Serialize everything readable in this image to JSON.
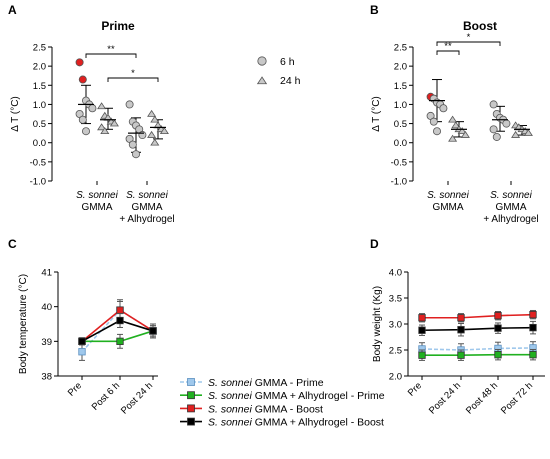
{
  "chart_data": [
    {
      "panel": "A",
      "type": "scatter",
      "title": "Prime",
      "ylabel": "Δ T (°C)",
      "ylim": [
        -1.0,
        2.5
      ],
      "yticks": [
        "-1.0",
        "-0.5",
        "0.0",
        "0.5",
        "1.0",
        "1.5",
        "2.0",
        "2.5"
      ],
      "groups": [
        {
          "line1": "S. sonnei",
          "line2": "GMMA",
          "line3": ""
        },
        {
          "line1": "S. sonnei",
          "line2": "GMMA",
          "line3": "+ Alhydrogel"
        }
      ],
      "series": [
        {
          "name": "6 h",
          "marker": "circle",
          "values": [
            [
              2.1,
              1.65,
              1.1,
              1.0,
              0.9,
              0.75,
              0.6,
              0.3
            ],
            [
              1.0,
              0.55,
              0.45,
              0.35,
              0.2,
              0.1,
              -0.05,
              -0.3
            ]
          ],
          "red_values": [
            2.1,
            1.65
          ],
          "mean": [
            1.0,
            0.25
          ],
          "sd_low": [
            0.5,
            -0.25
          ],
          "sd_high": [
            1.5,
            0.65
          ]
        },
        {
          "name": "24 h",
          "marker": "triangle",
          "values": [
            [
              0.95,
              0.7,
              0.65,
              0.55,
              0.5,
              0.4,
              0.3
            ],
            [
              0.75,
              0.6,
              0.45,
              0.35,
              0.3,
              0.2,
              0.0
            ]
          ],
          "mean": [
            0.6,
            0.4
          ],
          "sd_low": [
            0.35,
            0.1
          ],
          "sd_high": [
            0.9,
            0.6
          ]
        }
      ],
      "significance": [
        {
          "label": "**",
          "from": "6 h group 1",
          "to": "6 h group 2"
        },
        {
          "label": "*",
          "from": "24 h group 1",
          "to": "24 h group 2"
        }
      ]
    },
    {
      "panel": "B",
      "type": "scatter",
      "title": "Boost",
      "ylabel": "Δ T (°C)",
      "ylim": [
        -1.0,
        2.5
      ],
      "yticks": [
        "-1.0",
        "-0.5",
        "0.0",
        "0.5",
        "1.0",
        "1.5",
        "2.0",
        "2.5"
      ],
      "groups": [
        {
          "line1": "S. sonnei",
          "line2": "GMMA",
          "line3": ""
        },
        {
          "line1": "S. sonnei",
          "line2": "GMMA",
          "line3": "+ Alhydrogel"
        }
      ],
      "series": [
        {
          "name": "6 h",
          "marker": "circle",
          "values": [
            [
              1.2,
              1.15,
              1.05,
              1.0,
              0.9,
              0.7,
              0.55,
              0.3
            ],
            [
              1.0,
              0.75,
              0.65,
              0.6,
              0.5,
              0.35,
              0.15
            ]
          ],
          "red_values": [
            1.2
          ],
          "mean": [
            1.1,
            0.6
          ],
          "sd_low": [
            0.55,
            0.3
          ],
          "sd_high": [
            1.65,
            0.95
          ]
        },
        {
          "name": "24 h",
          "marker": "triangle",
          "values": [
            [
              0.6,
              0.45,
              0.35,
              0.3,
              0.2,
              0.1
            ],
            [
              0.45,
              0.4,
              0.35,
              0.3,
              0.25,
              0.2
            ]
          ],
          "mean": [
            0.35,
            0.35
          ],
          "sd_low": [
            0.15,
            0.2
          ],
          "sd_high": [
            0.55,
            0.45
          ]
        }
      ],
      "significance": [
        {
          "label": "**",
          "from": "6 h group 1",
          "to": "24 h group 1"
        },
        {
          "label": "*",
          "from": "6 h group 1",
          "to": "6 h group 2"
        }
      ]
    },
    {
      "panel": "C",
      "type": "line",
      "ylabel": "Body temperature (°C)",
      "ylim": [
        38,
        41
      ],
      "yticks": [
        "38",
        "39",
        "40",
        "41"
      ],
      "categories": [
        "Pre",
        "Post 6 h",
        "Post 24 h"
      ],
      "series": [
        {
          "name": "S. sonnei GMMA - Prime",
          "color": "#9fc8ec",
          "line": "dashed",
          "values": [
            38.7,
            39.9,
            39.3
          ],
          "err": [
            0.25,
            0.3,
            0.2
          ]
        },
        {
          "name": "S. sonnei GMMA + Alhydrogel - Prime",
          "color": "#20b020",
          "line": "solid",
          "values": [
            39.0,
            39.0,
            39.3
          ],
          "err": [
            0.1,
            0.2,
            0.15
          ]
        },
        {
          "name": "S. sonnei GMMA - Boost",
          "color": "#e02020",
          "line": "solid",
          "values": [
            39.0,
            39.9,
            39.3
          ],
          "err": [
            0.1,
            0.25,
            0.15
          ]
        },
        {
          "name": "S. sonnei GMMA + Alhydrogel - Boost",
          "color": "#000000",
          "line": "solid",
          "values": [
            39.0,
            39.6,
            39.3
          ],
          "err": [
            0.1,
            0.2,
            0.2
          ]
        }
      ]
    },
    {
      "panel": "D",
      "type": "line",
      "ylabel": "Body weight (Kg)",
      "ylim": [
        2.0,
        4.0
      ],
      "yticks": [
        "2.0",
        "2.5",
        "3.0",
        "3.5",
        "4.0"
      ],
      "categories": [
        "Pre",
        "Post 24 h",
        "Post 48 h",
        "Post 72 h"
      ],
      "series": [
        {
          "name": "S. sonnei GMMA - Prime",
          "color": "#9fc8ec",
          "line": "dashed",
          "values": [
            2.52,
            2.5,
            2.53,
            2.54
          ],
          "err": [
            0.12,
            0.12,
            0.12,
            0.12
          ]
        },
        {
          "name": "S. sonnei GMMA + Alhydrogel - Prime",
          "color": "#20b020",
          "line": "solid",
          "values": [
            2.4,
            2.4,
            2.41,
            2.41
          ],
          "err": [
            0.1,
            0.1,
            0.1,
            0.1
          ]
        },
        {
          "name": "S. sonnei GMMA - Boost",
          "color": "#e02020",
          "line": "solid",
          "values": [
            3.12,
            3.12,
            3.16,
            3.18
          ],
          "err": [
            0.08,
            0.08,
            0.08,
            0.08
          ]
        },
        {
          "name": "S. sonnei GMMA + Alhydrogel - Boost",
          "color": "#000000",
          "line": "solid",
          "values": [
            2.88,
            2.89,
            2.92,
            2.93
          ],
          "err": [
            0.1,
            0.12,
            0.1,
            0.12
          ]
        }
      ]
    }
  ],
  "legend_top": [
    {
      "label": "6 h",
      "marker": "circle"
    },
    {
      "label": "24 h",
      "marker": "triangle"
    }
  ],
  "legend_bottom": [
    {
      "italic": "S. sonnei",
      "rest": " GMMA - Prime",
      "color": "#9fc8ec",
      "line": "dashed"
    },
    {
      "italic": "S. sonnei",
      "rest": " GMMA + Alhydrogel - Prime",
      "color": "#20b020",
      "line": "solid"
    },
    {
      "italic": "S. sonnei",
      "rest": " GMMA - Boost",
      "color": "#e02020",
      "line": "solid"
    },
    {
      "italic": "S. sonnei",
      "rest": " GMMA + Alhydrogel - Boost",
      "color": "#000000",
      "line": "solid"
    }
  ],
  "colors": {
    "marker_grey": "#c8c8c8",
    "marker_red": "#e02020",
    "marker_edge": "#555555"
  }
}
